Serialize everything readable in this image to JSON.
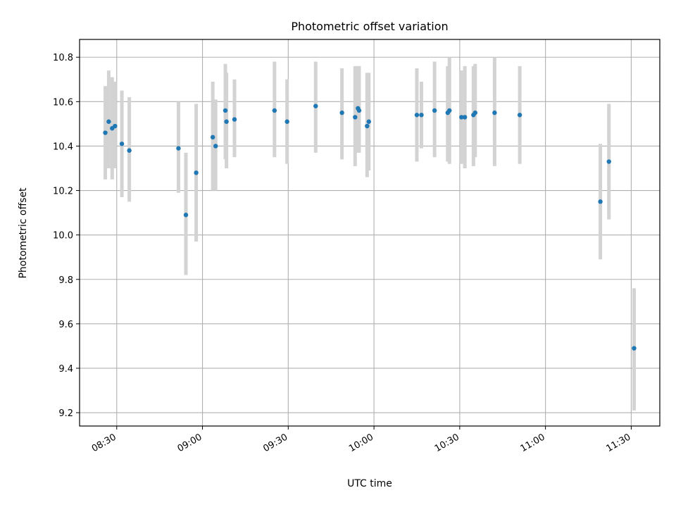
{
  "chart_data": {
    "type": "scatter",
    "title": "Photometric offset variation",
    "xlabel": "UTC time",
    "ylabel": "Photometric offset",
    "grid": true,
    "x_unit": "UTC time (HH:MM)",
    "xlim": [
      "08:17",
      "11:40"
    ],
    "ylim": [
      9.14,
      10.88
    ],
    "x_ticks": [
      "08:30",
      "09:00",
      "09:30",
      "10:00",
      "10:30",
      "11:00",
      "11:30"
    ],
    "y_ticks": [
      "9.2",
      "9.4",
      "9.6",
      "9.8",
      "10.0",
      "10.2",
      "10.4",
      "10.6",
      "10.8"
    ],
    "colors": {
      "point": "#1f77b4",
      "errorbar": "#d3d3d3",
      "grid": "#b0b0b0"
    },
    "points": [
      {
        "x": "08:26:00",
        "y": 10.46,
        "low": 10.25,
        "high": 10.67
      },
      {
        "x": "08:27:12",
        "y": 10.51,
        "low": 10.3,
        "high": 10.74
      },
      {
        "x": "08:28:24",
        "y": 10.48,
        "low": 10.25,
        "high": 10.71
      },
      {
        "x": "08:29:24",
        "y": 10.49,
        "low": 10.3,
        "high": 10.69
      },
      {
        "x": "08:31:48",
        "y": 10.41,
        "low": 10.17,
        "high": 10.65
      },
      {
        "x": "08:34:24",
        "y": 10.38,
        "low": 10.15,
        "high": 10.62
      },
      {
        "x": "08:51:36",
        "y": 10.39,
        "low": 10.19,
        "high": 10.6
      },
      {
        "x": "08:54:12",
        "y": 10.09,
        "low": 9.82,
        "high": 10.37
      },
      {
        "x": "08:57:48",
        "y": 10.28,
        "low": 9.97,
        "high": 10.59
      },
      {
        "x": "09:03:36",
        "y": 10.44,
        "low": 10.2,
        "high": 10.69
      },
      {
        "x": "09:04:36",
        "y": 10.4,
        "low": 10.2,
        "high": 10.61
      },
      {
        "x": "09:08:00",
        "y": 10.56,
        "low": 10.34,
        "high": 10.77
      },
      {
        "x": "09:08:24",
        "y": 10.51,
        "low": 10.3,
        "high": 10.73
      },
      {
        "x": "09:11:12",
        "y": 10.52,
        "low": 10.35,
        "high": 10.7
      },
      {
        "x": "09:25:12",
        "y": 10.56,
        "low": 10.35,
        "high": 10.78
      },
      {
        "x": "09:29:36",
        "y": 10.51,
        "low": 10.32,
        "high": 10.7
      },
      {
        "x": "09:39:36",
        "y": 10.58,
        "low": 10.37,
        "high": 10.78
      },
      {
        "x": "09:48:48",
        "y": 10.55,
        "low": 10.34,
        "high": 10.75
      },
      {
        "x": "09:53:24",
        "y": 10.53,
        "low": 10.31,
        "high": 10.76
      },
      {
        "x": "09:54:24",
        "y": 10.57,
        "low": 10.37,
        "high": 10.76
      },
      {
        "x": "09:54:48",
        "y": 10.56,
        "low": 10.37,
        "high": 10.76
      },
      {
        "x": "09:57:36",
        "y": 10.49,
        "low": 10.26,
        "high": 10.73
      },
      {
        "x": "09:58:12",
        "y": 10.51,
        "low": 10.29,
        "high": 10.73
      },
      {
        "x": "10:15:00",
        "y": 10.54,
        "low": 10.33,
        "high": 10.75
      },
      {
        "x": "10:16:36",
        "y": 10.54,
        "low": 10.39,
        "high": 10.69
      },
      {
        "x": "10:21:12",
        "y": 10.56,
        "low": 10.35,
        "high": 10.78
      },
      {
        "x": "10:25:48",
        "y": 10.55,
        "low": 10.33,
        "high": 10.76
      },
      {
        "x": "10:26:24",
        "y": 10.56,
        "low": 10.32,
        "high": 10.8
      },
      {
        "x": "10:30:36",
        "y": 10.53,
        "low": 10.32,
        "high": 10.74
      },
      {
        "x": "10:31:48",
        "y": 10.53,
        "low": 10.3,
        "high": 10.76
      },
      {
        "x": "10:34:48",
        "y": 10.54,
        "low": 10.31,
        "high": 10.76
      },
      {
        "x": "10:35:24",
        "y": 10.55,
        "low": 10.35,
        "high": 10.77
      },
      {
        "x": "10:42:12",
        "y": 10.55,
        "low": 10.31,
        "high": 10.8
      },
      {
        "x": "10:51:00",
        "y": 10.54,
        "low": 10.32,
        "high": 10.76
      },
      {
        "x": "11:19:12",
        "y": 10.15,
        "low": 9.89,
        "high": 10.41
      },
      {
        "x": "11:22:12",
        "y": 10.33,
        "low": 10.07,
        "high": 10.59
      },
      {
        "x": "11:31:00",
        "y": 9.49,
        "low": 9.21,
        "high": 9.76
      }
    ]
  }
}
